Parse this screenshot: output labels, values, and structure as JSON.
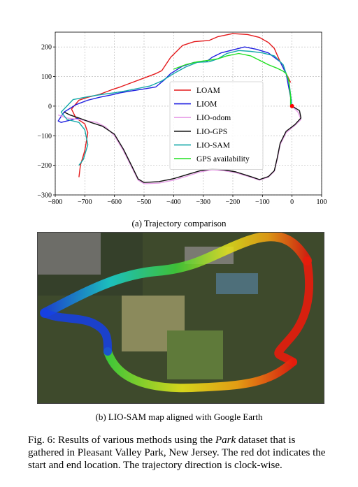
{
  "chart_data": {
    "type": "line",
    "xlim": [
      -800,
      100
    ],
    "ylim": [
      -300,
      250
    ],
    "xticks": [
      -800,
      -700,
      -600,
      -500,
      -400,
      -300,
      -200,
      -100,
      0,
      100
    ],
    "yticks": [
      -300,
      -200,
      -100,
      0,
      100,
      200
    ],
    "xtick_labels": [
      "−800",
      "−700",
      "−600",
      "−500",
      "−400",
      "−300",
      "−200",
      "−100",
      "0",
      "100"
    ],
    "ytick_labels": [
      "−300",
      "−200",
      "−100",
      "0",
      "100",
      "200"
    ],
    "grid": true,
    "legend_position": "center-right",
    "start_marker": {
      "x": 0,
      "y": 0,
      "color": "#ff0000"
    },
    "series": [
      {
        "name": "LOAM",
        "color": "#e41a1c",
        "x": [
          -5,
          -40,
          -60,
          -80,
          -110,
          -150,
          -200,
          -250,
          -280,
          -330,
          -370,
          -410,
          -440,
          -460,
          -500,
          -540,
          -580,
          -610,
          -650,
          -690,
          -720,
          -745,
          -730,
          -700,
          -690,
          -700,
          -715,
          -720
        ],
        "y": [
          80,
          150,
          195,
          215,
          232,
          242,
          245,
          235,
          222,
          218,
          205,
          165,
          120,
          110,
          95,
          80,
          65,
          55,
          40,
          30,
          20,
          -10,
          -40,
          -60,
          -90,
          -150,
          -200,
          -240
        ]
      },
      {
        "name": "LIOM",
        "color": "#1f1fe0",
        "x": [
          -5,
          -20,
          -40,
          -80,
          -120,
          -160,
          -200,
          -240,
          -270,
          -290,
          -330,
          -370,
          -410,
          -430,
          -460,
          -500,
          -540,
          -580,
          -610,
          -650,
          -690,
          -730,
          -770,
          -790,
          -780,
          -760,
          -720
        ],
        "y": [
          30,
          110,
          150,
          180,
          192,
          200,
          190,
          180,
          165,
          150,
          148,
          135,
          110,
          90,
          65,
          58,
          52,
          45,
          38,
          30,
          20,
          5,
          -20,
          -50,
          -55,
          -50,
          -40
        ]
      },
      {
        "name": "LIO-odom",
        "color": "#e8a0e8",
        "x": [
          0,
          20,
          30,
          10,
          -20,
          -40,
          -50,
          -60,
          -80,
          -110,
          -140,
          -190,
          -230,
          -270,
          -310,
          -350,
          -400,
          -450,
          -500,
          -520,
          -540,
          -570,
          -600,
          -630,
          -660,
          -690,
          -720,
          -760,
          -790
        ],
        "y": [
          0,
          -20,
          -45,
          -65,
          -90,
          -130,
          -180,
          -220,
          -240,
          -250,
          -240,
          -225,
          -218,
          -215,
          -222,
          -235,
          -250,
          -260,
          -262,
          -250,
          -210,
          -150,
          -100,
          -70,
          -55,
          -50,
          -45,
          -40,
          -30
        ]
      },
      {
        "name": "LIO-GPS",
        "color": "#111111",
        "x": [
          0,
          25,
          30,
          10,
          -20,
          -40,
          -50,
          -60,
          -80,
          -110,
          -140,
          -190,
          -230,
          -270,
          -310,
          -350,
          -400,
          -450,
          -500,
          -520,
          -540,
          -570,
          -600,
          -640,
          -680,
          -720,
          -750,
          -770
        ],
        "y": [
          0,
          -15,
          -40,
          -62,
          -85,
          -125,
          -175,
          -218,
          -238,
          -248,
          -238,
          -222,
          -215,
          -212,
          -218,
          -230,
          -245,
          -255,
          -258,
          -246,
          -205,
          -145,
          -95,
          -68,
          -55,
          -40,
          -30,
          -20
        ]
      },
      {
        "name": "LIO-SAM",
        "color": "#13a8a8",
        "x": [
          0,
          -10,
          -30,
          -60,
          -100,
          -140,
          -180,
          -220,
          -250,
          -280,
          -320,
          -360,
          -400,
          -440,
          -480,
          -520,
          -560,
          -600,
          -640,
          -690,
          -740,
          -780,
          -760,
          -720,
          -700,
          -690,
          -705,
          -720
        ],
        "y": [
          0,
          80,
          140,
          170,
          180,
          185,
          188,
          178,
          160,
          150,
          148,
          132,
          110,
          85,
          68,
          60,
          52,
          45,
          40,
          32,
          22,
          -20,
          -45,
          -55,
          -80,
          -130,
          -180,
          -200
        ]
      },
      {
        "name": "GPS availability",
        "color": "#22e022",
        "x": [
          -5,
          -5,
          -8,
          -12,
          -20,
          -30,
          -50,
          -80,
          -110,
          -140,
          -180,
          -220,
          -250,
          -280,
          -320,
          -360,
          -400
        ],
        "y": [
          0,
          30,
          60,
          90,
          110,
          118,
          128,
          140,
          155,
          170,
          178,
          170,
          160,
          155,
          150,
          140,
          125
        ]
      }
    ]
  },
  "captions": {
    "sub_a": "(a) Trajectory comparison",
    "sub_b": "(b) LIO-SAM map aligned with Google Earth",
    "fig_label": "Fig. 6:",
    "fig_text_1": "Results of various methods using the",
    "fig_dataset": "Park",
    "fig_text_2": "dataset that is gathered in Pleasant Valley Park, New Jersey. The red dot indicates the start and end location. The trajectory direction is clock-wise."
  },
  "map_colors": {
    "aerial_dark": "#3e4a2c",
    "field": "#8b8a5c",
    "red": "#e81c0c",
    "orange": "#f5a511",
    "yellow": "#e6e41a",
    "green": "#3ed43a",
    "cyan": "#18d6d6",
    "blue": "#1540e8"
  }
}
